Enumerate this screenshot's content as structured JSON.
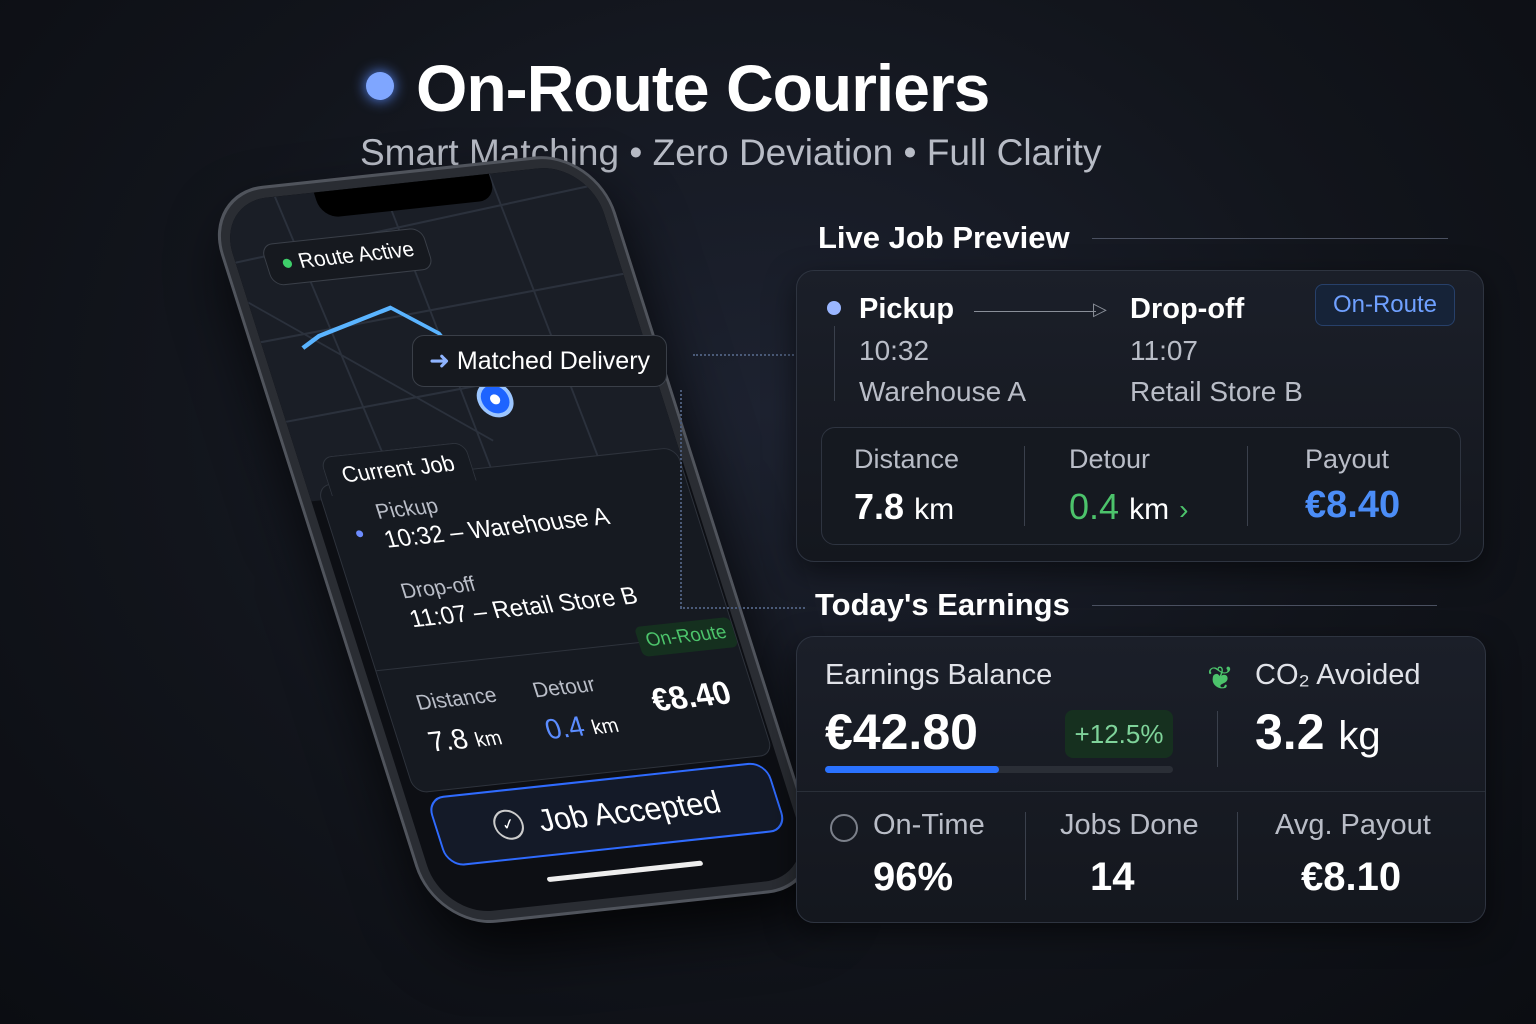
{
  "header": {
    "title": "On-Route Couriers",
    "subtitle": "Smart Matching • Zero Deviation • Full Clarity"
  },
  "phone": {
    "status": "Route Active",
    "matched": "Matched Delivery",
    "current_job": "Current Job",
    "pickup_label": "Pickup",
    "pickup_detail": "10:32 – Warehouse A",
    "dropoff_label": "Drop-off",
    "dropoff_detail": "11:07 – Retail Store B",
    "badge": "On-Route",
    "distance_label": "Distance",
    "distance_value": "7.8",
    "distance_unit": "km",
    "detour_label": "Detour",
    "detour_value": "0.4",
    "detour_unit": "km",
    "payout_value": "€8.40",
    "accept_button": "Job Accepted"
  },
  "live_job": {
    "title": "Live Job Preview",
    "pickup_label": "Pickup",
    "pickup_time": "10:32",
    "pickup_place": "Warehouse A",
    "dropoff_label": "Drop-off",
    "dropoff_time": "11:07",
    "dropoff_place": "Retail Store B",
    "badge": "On-Route",
    "distance_label": "Distance",
    "distance_value": "7.8",
    "distance_unit": "km",
    "detour_label": "Detour",
    "detour_value": "0.4",
    "detour_unit": "km",
    "payout_label": "Payout",
    "payout_value": "€8.40"
  },
  "earnings": {
    "title": "Today's Earnings",
    "balance_label": "Earnings Balance",
    "balance_value": "€42.80",
    "change": "+12.5%",
    "progress_percent": 50,
    "co2_label": "CO₂ Avoided",
    "co2_value": "3.2",
    "co2_unit": "kg",
    "ontime_label": "On-Time",
    "ontime_value": "96%",
    "jobs_label": "Jobs Done",
    "jobs_value": "14",
    "avg_label": "Avg. Payout",
    "avg_value": "€8.10"
  },
  "colors": {
    "accent": "#3b82f6",
    "green": "#4cc36b",
    "bg": "#12151c"
  }
}
